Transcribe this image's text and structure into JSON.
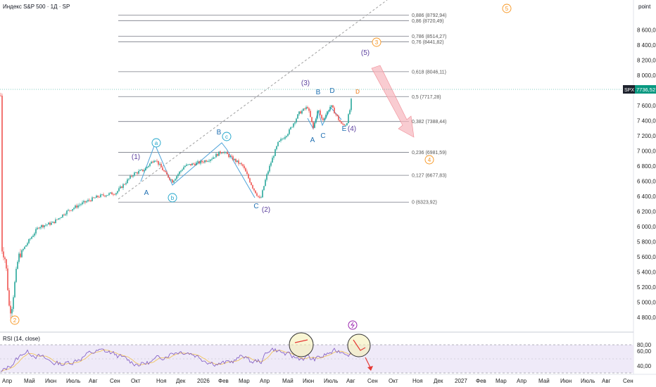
{
  "header": {
    "title": "Индекс S&P 500 · 1Д · SP"
  },
  "price_scale_label": "point",
  "rsi": {
    "title": "RSI (14, close)",
    "ticks": [
      "80,00",
      "60,00",
      "40,00"
    ]
  },
  "colors": {
    "wave_blue": "#19a2c9",
    "wave_purple": "#5b3f9e",
    "wave_orange": "#f7941d",
    "bullish_candle": "#26a69a",
    "bearish_candle": "#ef5350",
    "rsi_line": "#7e57c2",
    "rsi_ma": "#f2c14e",
    "current_price_bg": "#089981"
  },
  "chart_data": {
    "type": "candlestick",
    "y_axis": {
      "min": 4700,
      "max": 8900,
      "ticks": [
        "8 600,00",
        "8 400,00",
        "8 200,00",
        "8 000,00",
        "7 800,00",
        "7 600,00",
        "7 400,00",
        "7 200,00",
        "7 000,00",
        "6 800,00",
        "6 600,00",
        "6 400,00",
        "6 200,00",
        "6 000,00",
        "5 800,00",
        "5 600,00",
        "5 400,00",
        "5 200,00",
        "5 000,00",
        "4 800,00"
      ]
    },
    "x_axis": {
      "labels": [
        "Апр",
        "Май",
        "Июн",
        "Июль",
        "Авг",
        "Сен",
        "Окт",
        "Ноя",
        "Дек",
        "2026",
        "Фев",
        "Мар",
        "Апр",
        "Май",
        "Июн",
        "Июль",
        "Авг",
        "Сен",
        "Окт",
        "Ноя",
        "Дек",
        "2027",
        "Фев",
        "Мар",
        "Апр",
        "Май",
        "Июн",
        "Июль",
        "Авг",
        "Сен"
      ]
    },
    "current_price": {
      "symbol": "SPX",
      "value": "7736,52"
    },
    "fib_levels": [
      {
        "label": "0,886 (8792,94)",
        "value": 8792.94
      },
      {
        "label": "0,86 (8720,49)",
        "value": 8720.49
      },
      {
        "label": "0,786 (8514,27)",
        "value": 8514.27
      },
      {
        "label": "0,76 (8441,82)",
        "value": 8441.82
      },
      {
        "label": "0,618 (8046,11)",
        "value": 8046.11
      },
      {
        "label": "0,5 (7717,28)",
        "value": 7717.28
      },
      {
        "label": "0,382 (7388,44)",
        "value": 7388.44
      },
      {
        "label": "0,236 (6981,59)",
        "value": 6981.59
      },
      {
        "label": "0,127 (6677,83)",
        "value": 6677.83
      },
      {
        "label": "0 (6323,92)",
        "value": 6323.92
      }
    ],
    "wave_labels": {
      "orange": [
        "2",
        "3",
        "4",
        "5"
      ],
      "purple": [
        "(1)",
        "(2)",
        "(3)",
        "(4)",
        "(5)"
      ],
      "blue_circle": [
        "a",
        "b",
        "c"
      ],
      "blue_letters": [
        "A",
        "B",
        "C",
        "A",
        "B",
        "C",
        "D",
        "E"
      ],
      "marker": "D"
    }
  }
}
